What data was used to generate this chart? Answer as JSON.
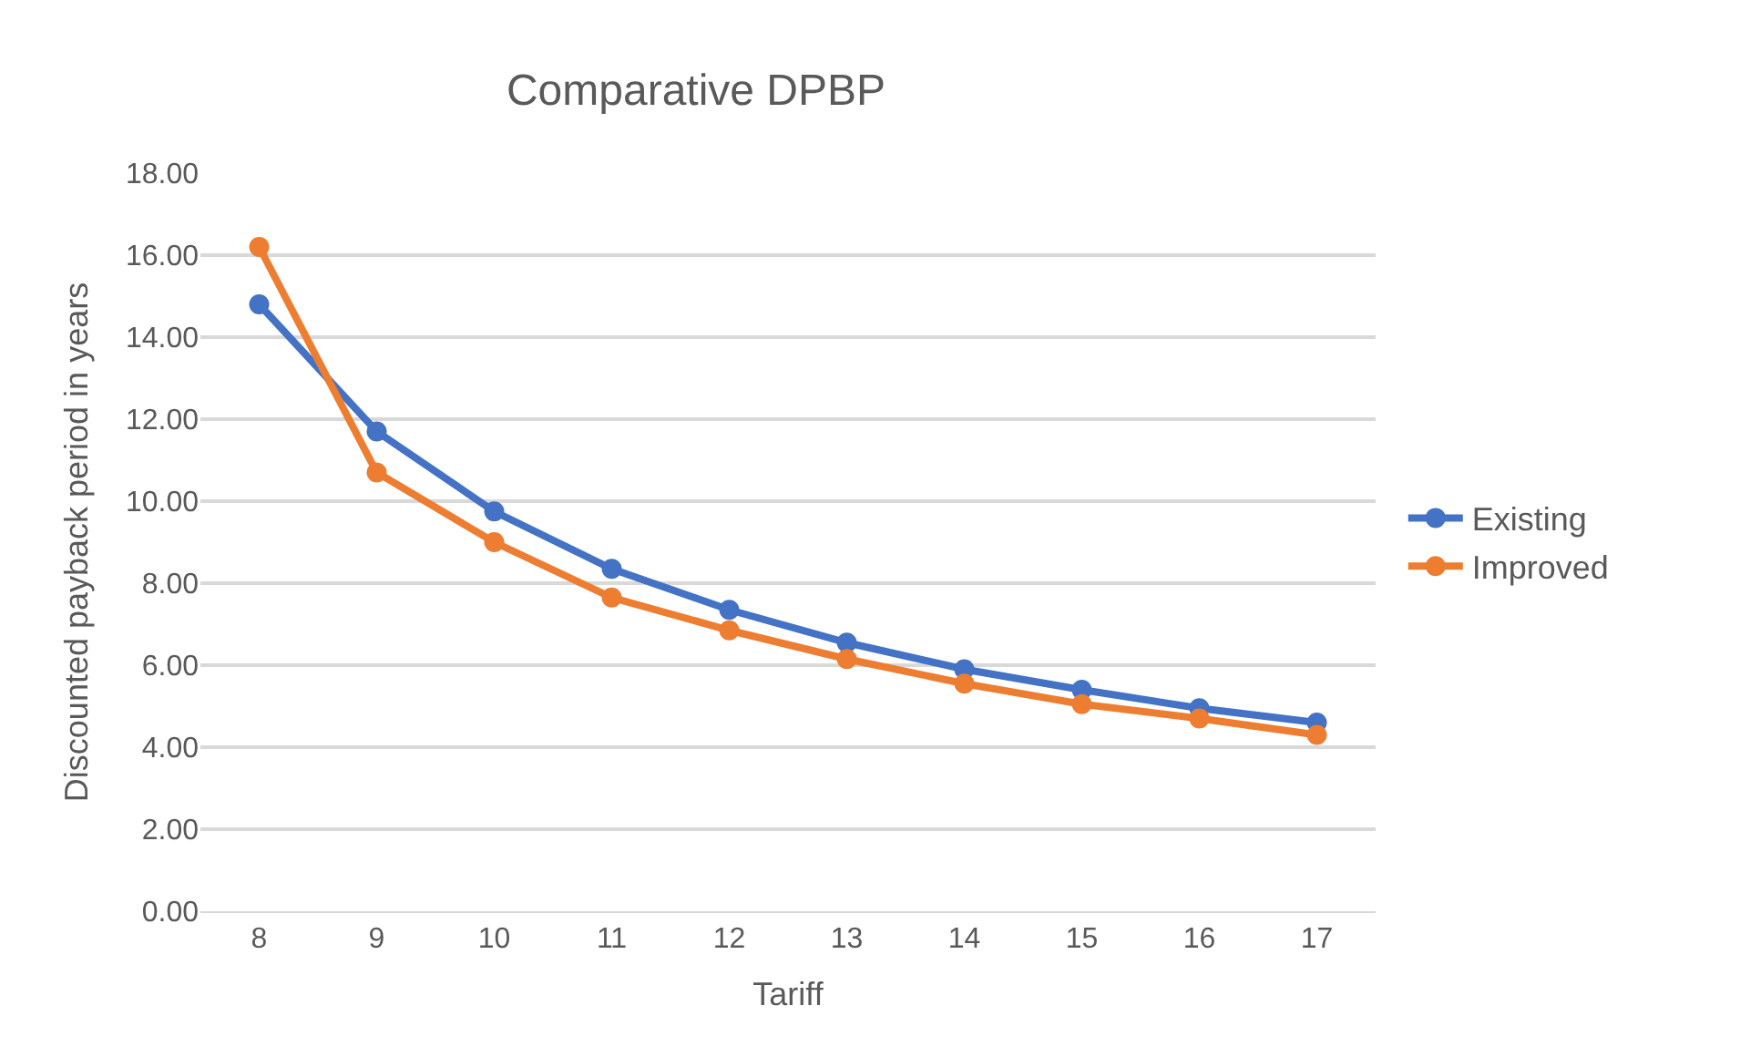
{
  "chart_data": {
    "type": "line",
    "title": "Comparative DPBP",
    "xlabel": "Tariff",
    "ylabel": "Discounted payback period in years",
    "categories": [
      "8",
      "9",
      "10",
      "11",
      "12",
      "13",
      "14",
      "15",
      "16",
      "17"
    ],
    "series": [
      {
        "name": "Existing",
        "color": "#4472c4",
        "values": [
          14.8,
          11.7,
          9.75,
          8.35,
          7.35,
          6.55,
          5.9,
          5.4,
          4.95,
          4.6
        ]
      },
      {
        "name": "Improved",
        "color": "#ed7d31",
        "values": [
          16.2,
          10.7,
          9.0,
          7.65,
          6.85,
          6.15,
          5.55,
          5.05,
          4.7,
          4.3
        ]
      }
    ],
    "ylim": [
      0,
      18
    ],
    "yticks": [
      {
        "value": 0,
        "label": "0.00"
      },
      {
        "value": 2,
        "label": "2.00"
      },
      {
        "value": 4,
        "label": "4.00"
      },
      {
        "value": 6,
        "label": "6.00"
      },
      {
        "value": 8,
        "label": "8.00"
      },
      {
        "value": 10,
        "label": "10.00"
      },
      {
        "value": 12,
        "label": "12.00"
      },
      {
        "value": 14,
        "label": "14.00"
      },
      {
        "value": 16,
        "label": "16.00"
      },
      {
        "value": 18,
        "label": "18.00"
      }
    ],
    "grid": "y",
    "legend": "right",
    "marker": "circle",
    "line_style": "solid"
  }
}
